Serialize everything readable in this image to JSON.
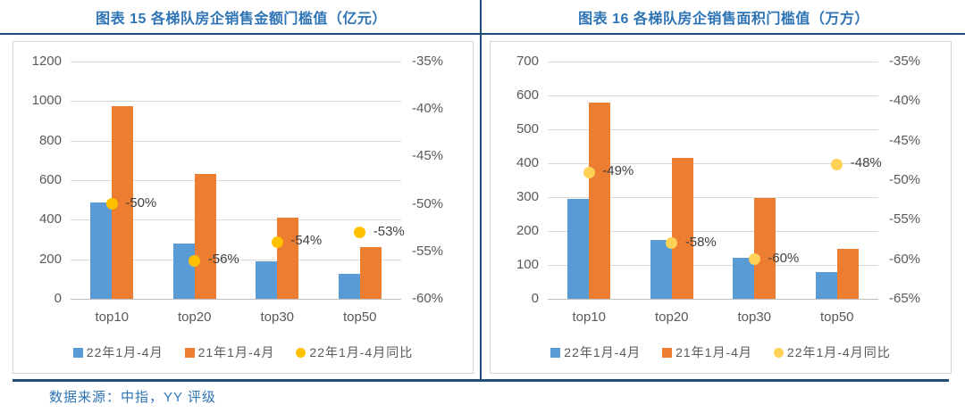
{
  "page": {
    "source_note": "数据来源：中指，YY 评级",
    "colors": {
      "title": "#2E74B5",
      "rule": "#1F4E79",
      "grid": "#D9D9D9"
    }
  },
  "chart_data": [
    {
      "type": "bar",
      "title": "图表 15 各梯队房企销售金额门槛值（亿元）",
      "categories": [
        "top10",
        "top20",
        "top30",
        "top50"
      ],
      "primary_axis": {
        "min": 0,
        "max": 1200,
        "step": 200
      },
      "secondary_axis": {
        "min": -60,
        "max": -35,
        "labels": [
          "-35%",
          "-40%",
          "-45%",
          "-50%",
          "-55%",
          "-60%"
        ]
      },
      "grid": true,
      "legend_position": "bottom",
      "series": [
        {
          "name": "22年1月-4月",
          "type": "bar",
          "color": "#5B9BD5",
          "values": [
            485,
            280,
            190,
            125
          ]
        },
        {
          "name": "21年1月-4月",
          "type": "bar",
          "color": "#ED7D31",
          "values": [
            975,
            630,
            410,
            260
          ]
        },
        {
          "name": "22年1月-4月同比",
          "type": "scatter",
          "color": "#FFC000",
          "values": [
            -50,
            -56,
            -54,
            -53
          ],
          "point_labels": [
            "-50%",
            "-56%",
            "-54%",
            "-53%"
          ]
        }
      ]
    },
    {
      "type": "bar",
      "title": "图表 16 各梯队房企销售面积门槛值（万方）",
      "categories": [
        "top10",
        "top20",
        "top30",
        "top50"
      ],
      "primary_axis": {
        "min": 0,
        "max": 700,
        "step": 100
      },
      "secondary_axis": {
        "min": -65,
        "max": -35,
        "labels": [
          "-35%",
          "-40%",
          "-45%",
          "-50%",
          "-55%",
          "-60%",
          "-65%"
        ]
      },
      "grid": true,
      "legend_position": "bottom",
      "series": [
        {
          "name": "22年1月-4月",
          "type": "bar",
          "color": "#5B9BD5",
          "values": [
            295,
            175,
            120,
            78
          ]
        },
        {
          "name": "21年1月-4月",
          "type": "bar",
          "color": "#ED7D31",
          "values": [
            580,
            417,
            297,
            148
          ]
        },
        {
          "name": "22年1月-4月同比",
          "type": "scatter",
          "color": "#FFD155",
          "values": [
            -49,
            -58,
            -60,
            -48
          ],
          "point_labels": [
            "-49%",
            "-58%",
            "-60%",
            "-48%"
          ]
        }
      ]
    }
  ]
}
